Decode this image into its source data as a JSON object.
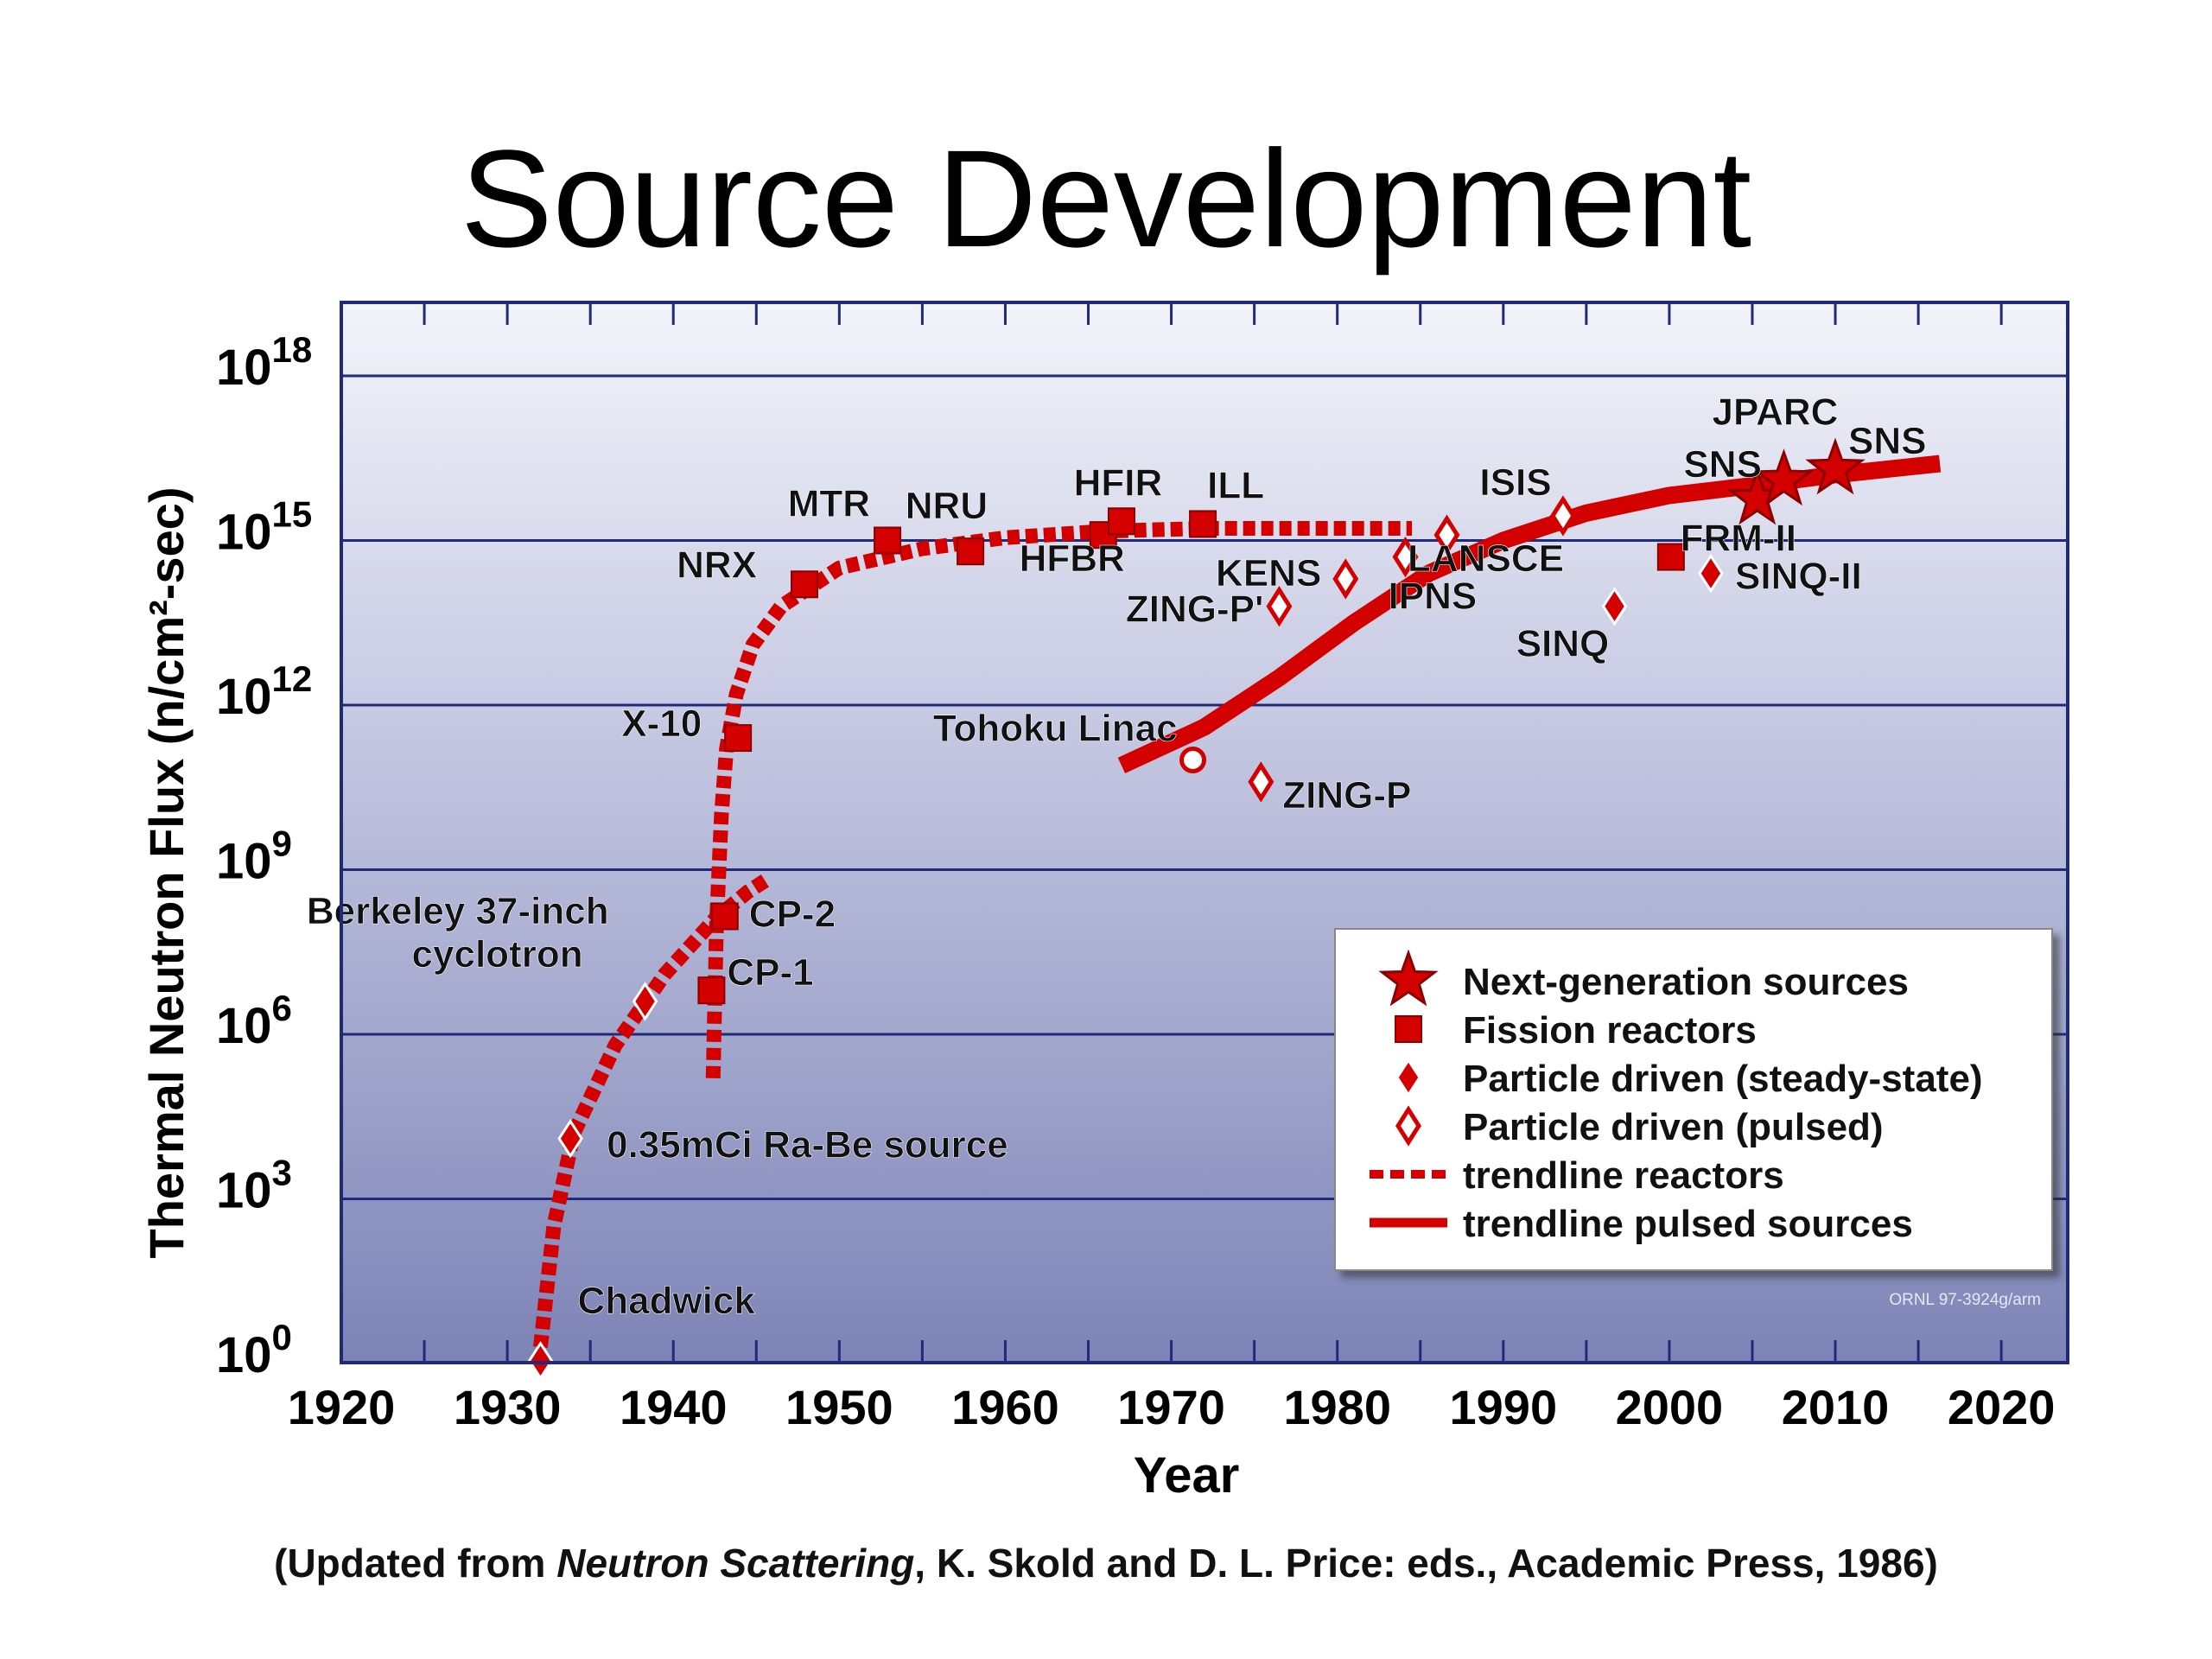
{
  "page": {
    "title": "Source Development",
    "footnote": {
      "before": "(Updated from ",
      "italic": "Neutron Scattering",
      "after": ", K. Skold and D. L. Price: eds., Academic Press, 1986)"
    },
    "credit": "ORNL 97-3924g/arm"
  },
  "chart_data": {
    "type": "scatter",
    "title": "",
    "xlabel": "Year",
    "ylabel": "Thermal Neutron Flux (n/cm²-sec)",
    "xlim": [
      1920,
      2024
    ],
    "ylim_log10": [
      0,
      19.4
    ],
    "y_scale": "log10",
    "x_ticks": [
      1920,
      1930,
      1940,
      1950,
      1960,
      1970,
      1980,
      1990,
      2000,
      2010,
      2020
    ],
    "x_minor_ticks": [
      1925,
      1935,
      1945,
      1955,
      1965,
      1975,
      1985,
      1995,
      2005,
      2015
    ],
    "y_ticks": [
      {
        "base": "10",
        "exp": "0",
        "log10": 0
      },
      {
        "base": "10",
        "exp": "3",
        "log10": 3
      },
      {
        "base": "10",
        "exp": "6",
        "log10": 6
      },
      {
        "base": "10",
        "exp": "9",
        "log10": 9
      },
      {
        "base": "10",
        "exp": "12",
        "log10": 12
      },
      {
        "base": "10",
        "exp": "15",
        "log10": 15
      },
      {
        "base": "10",
        "exp": "18",
        "log10": 18
      }
    ],
    "grid": "horizontal",
    "legend_position": "bottom-right",
    "colors": {
      "marker": "#d40000",
      "marker_dark": "#8a0000",
      "background_top": "#f2f3f9",
      "background_bottom": "#7f86b7",
      "gridline": "#1f2a7a",
      "frame": "#1f2a7a"
    },
    "legend": [
      {
        "label": "Next-generation sources",
        "symbol": "star"
      },
      {
        "label": "Fission reactors",
        "symbol": "square"
      },
      {
        "label": "Particle driven (steady-state)",
        "symbol": "diamond-filled"
      },
      {
        "label": "Particle driven (pulsed)",
        "symbol": "diamond-open"
      },
      {
        "label": "trendline reactors",
        "symbol": "dashed-line"
      },
      {
        "label": "trendline pulsed sources",
        "symbol": "solid-line"
      }
    ],
    "points": [
      {
        "label": "Chadwick",
        "x": 1932.0,
        "y": 0.05,
        "type": "diamond-filled"
      },
      {
        "label": "0.35mCi Ra-Be source",
        "x": 1933.8,
        "y": 4.1,
        "type": "diamond-filled"
      },
      {
        "label": "Berkeley 37-inch cyclotron",
        "x": 1938.3,
        "y": 6.6,
        "type": "diamond-filled"
      },
      {
        "label": "CP-1",
        "x": 1942.3,
        "y": 6.8,
        "type": "square"
      },
      {
        "label": "CP-2",
        "x": 1943.1,
        "y": 8.15,
        "type": "square"
      },
      {
        "label": "X-10",
        "x": 1943.9,
        "y": 11.4,
        "type": "square"
      },
      {
        "label": "NRX",
        "x": 1947.9,
        "y": 14.2,
        "type": "square"
      },
      {
        "label": "MTR",
        "x": 1952.9,
        "y": 15.0,
        "type": "square"
      },
      {
        "label": "NRU",
        "x": 1957.9,
        "y": 14.8,
        "type": "square"
      },
      {
        "label": "HFBR",
        "x": 1965.9,
        "y": 15.1,
        "type": "square"
      },
      {
        "label": "HFIR",
        "x": 1967.0,
        "y": 15.35,
        "type": "square"
      },
      {
        "label": "ILL",
        "x": 1971.9,
        "y": 15.3,
        "type": "square"
      },
      {
        "label": "Tohoku Linac",
        "x": 1971.3,
        "y": 11.0,
        "type": "circle-open"
      },
      {
        "label": "ZING-P",
        "x": 1975.4,
        "y": 10.6,
        "type": "diamond-open"
      },
      {
        "label": "ZING-P'",
        "x": 1976.5,
        "y": 13.8,
        "type": "diamond-open"
      },
      {
        "label": "KENS",
        "x": 1980.5,
        "y": 14.3,
        "type": "diamond-open"
      },
      {
        "label": "IPNS",
        "x": 1984.1,
        "y": 14.7,
        "type": "diamond-open"
      },
      {
        "label": "LANSCE",
        "x": 1986.6,
        "y": 15.1,
        "type": "diamond-open"
      },
      {
        "label": "ISIS",
        "x": 1993.6,
        "y": 15.45,
        "type": "diamond-open"
      },
      {
        "label": "SINQ",
        "x": 1996.7,
        "y": 13.8,
        "type": "diamond-filled"
      },
      {
        "label": "FRM-II",
        "x": 2000.1,
        "y": 14.7,
        "type": "square"
      },
      {
        "label": "SINQ-II",
        "x": 2002.5,
        "y": 14.4,
        "type": "diamond-filled"
      },
      {
        "label": "SNS",
        "x": 2005.3,
        "y": 15.75,
        "type": "star"
      },
      {
        "label": "JPARC",
        "x": 2006.9,
        "y": 16.1,
        "type": "star"
      },
      {
        "label": "SNS",
        "x": 2010.0,
        "y": 16.3,
        "type": "star"
      }
    ],
    "trendlines": [
      {
        "name": "trendline reactors (early)",
        "style": "dashed",
        "x": [
          1932.0,
          1932.8,
          1934.0,
          1936.5,
          1939.5,
          1942.5,
          1944.5,
          1945.8
        ],
        "y": [
          0.3,
          2.5,
          4.2,
          5.8,
          7.1,
          8.1,
          8.6,
          8.85
        ]
      },
      {
        "name": "trendline reactors",
        "style": "dashed",
        "x": [
          1942.4,
          1942.6,
          1942.9,
          1943.2,
          1943.8,
          1944.8,
          1946.5,
          1950,
          1955,
          1960,
          1966,
          1972,
          1978,
          1984.5
        ],
        "y": [
          5.2,
          8.0,
          10.0,
          11.2,
          12.2,
          13.1,
          13.8,
          14.5,
          14.85,
          15.05,
          15.17,
          15.22,
          15.22,
          15.22
        ]
      },
      {
        "name": "trendline pulsed sources",
        "style": "solid",
        "x": [
          1967.0,
          1972.0,
          1976.5,
          1981.0,
          1985.5,
          1990,
          1995,
          2000,
          2005,
          2010,
          2016.3
        ],
        "y": [
          10.9,
          11.6,
          12.5,
          13.5,
          14.4,
          15.0,
          15.5,
          15.82,
          16.0,
          16.2,
          16.4
        ]
      }
    ]
  }
}
